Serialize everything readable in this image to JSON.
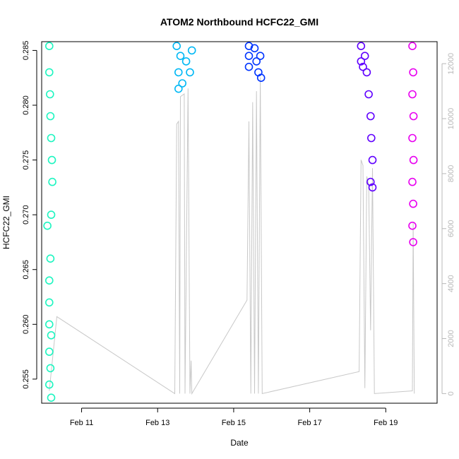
{
  "chart_data": {
    "type": "scatter",
    "title": "ATOM2 Northbound HCFC22_GMI",
    "xlabel": "Date",
    "ylabel": "HCFC22_GMI",
    "x_ticks": [
      "Feb 11",
      "Feb 13",
      "Feb 15",
      "Feb 17",
      "Feb 19"
    ],
    "x_tick_values": [
      11,
      13,
      15,
      17,
      19
    ],
    "xlim": [
      9.95,
      20.35
    ],
    "ylim": [
      0.2528,
      0.2858
    ],
    "y_ticks": [
      "0.255",
      "0.260",
      "0.265",
      "0.270",
      "0.275",
      "0.280",
      "0.285"
    ],
    "y_tick_values": [
      0.255,
      0.26,
      0.265,
      0.27,
      0.275,
      0.28,
      0.285
    ],
    "y2lim": [
      -350,
      12800
    ],
    "y2_ticks": [
      "0",
      "2000",
      "4000",
      "6000",
      "8000",
      "10000",
      "12000"
    ],
    "y2_tick_values": [
      0,
      2000,
      4000,
      6000,
      8000,
      10000,
      12000
    ],
    "marker": "open-circle",
    "grid": false,
    "legend": "none",
    "series": [
      {
        "color": "#1df5c0",
        "points": [
          [
            10.15,
            0.2854
          ],
          [
            10.15,
            0.283
          ],
          [
            10.17,
            0.281
          ],
          [
            10.18,
            0.279
          ],
          [
            10.2,
            0.277
          ],
          [
            10.22,
            0.275
          ],
          [
            10.23,
            0.273
          ],
          [
            10.2,
            0.27
          ],
          [
            10.1,
            0.269
          ],
          [
            10.18,
            0.266
          ],
          [
            10.15,
            0.264
          ],
          [
            10.15,
            0.262
          ],
          [
            10.15,
            0.26
          ],
          [
            10.2,
            0.259
          ],
          [
            10.15,
            0.2575
          ],
          [
            10.18,
            0.256
          ],
          [
            10.15,
            0.2545
          ],
          [
            10.2,
            0.2533
          ]
        ]
      },
      {
        "color": "#00b8f5",
        "points": [
          [
            13.5,
            0.2854
          ],
          [
            13.6,
            0.2845
          ],
          [
            13.55,
            0.283
          ],
          [
            13.75,
            0.284
          ],
          [
            13.55,
            0.2815
          ],
          [
            13.65,
            0.282
          ],
          [
            13.85,
            0.283
          ],
          [
            13.9,
            0.285
          ]
        ]
      },
      {
        "color": "#0035ff",
        "points": [
          [
            15.4,
            0.2854
          ],
          [
            15.4,
            0.2845
          ],
          [
            15.4,
            0.2835
          ],
          [
            15.55,
            0.2852
          ],
          [
            15.6,
            0.284
          ],
          [
            15.65,
            0.283
          ],
          [
            15.7,
            0.2845
          ],
          [
            15.72,
            0.2825
          ]
        ]
      },
      {
        "color": "#6000ff",
        "points": [
          [
            18.35,
            0.2854
          ],
          [
            18.35,
            0.284
          ],
          [
            18.4,
            0.2835
          ],
          [
            18.45,
            0.2845
          ],
          [
            18.5,
            0.283
          ],
          [
            18.55,
            0.281
          ],
          [
            18.6,
            0.279
          ],
          [
            18.62,
            0.277
          ],
          [
            18.65,
            0.275
          ],
          [
            18.6,
            0.273
          ],
          [
            18.65,
            0.2725
          ]
        ]
      },
      {
        "color": "#e800f0",
        "points": [
          [
            19.7,
            0.2854
          ],
          [
            19.72,
            0.283
          ],
          [
            19.7,
            0.281
          ],
          [
            19.73,
            0.279
          ],
          [
            19.7,
            0.277
          ],
          [
            19.73,
            0.275
          ],
          [
            19.7,
            0.273
          ],
          [
            19.72,
            0.271
          ],
          [
            19.7,
            0.269
          ],
          [
            19.72,
            0.2675
          ]
        ]
      }
    ],
    "altitude_track": {
      "color": "#c8c8c8",
      "points": [
        [
          10.15,
          100
        ],
        [
          10.35,
          2800
        ],
        [
          13.45,
          0
        ],
        [
          13.5,
          9800
        ],
        [
          13.55,
          9900
        ],
        [
          13.58,
          0
        ],
        [
          13.6,
          10800
        ],
        [
          13.7,
          10900
        ],
        [
          13.72,
          0
        ],
        [
          13.8,
          11100
        ],
        [
          13.85,
          0
        ],
        [
          13.88,
          1200
        ],
        [
          13.9,
          0
        ],
        [
          15.35,
          3400
        ],
        [
          15.4,
          9900
        ],
        [
          15.45,
          0
        ],
        [
          15.5,
          10600
        ],
        [
          15.55,
          0
        ],
        [
          15.6,
          11000
        ],
        [
          15.65,
          0
        ],
        [
          15.7,
          11500
        ],
        [
          15.75,
          0
        ],
        [
          18.3,
          800
        ],
        [
          18.35,
          8500
        ],
        [
          18.4,
          8300
        ],
        [
          18.45,
          200
        ],
        [
          18.5,
          7900
        ],
        [
          18.55,
          7600
        ],
        [
          18.6,
          2300
        ],
        [
          18.65,
          8200
        ],
        [
          18.7,
          0
        ],
        [
          19.7,
          100
        ],
        [
          19.72,
          6200
        ],
        [
          19.75,
          0
        ]
      ]
    }
  }
}
